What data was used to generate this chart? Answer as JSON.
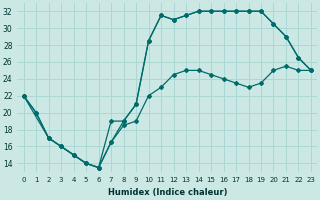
{
  "xlabel": "Humidex (Indice chaleur)",
  "bg_color": "#cce8e5",
  "grid_color": "#aad8d4",
  "line_color": "#006b6b",
  "xlim": [
    -0.5,
    23.5
  ],
  "ylim": [
    13.0,
    33.0
  ],
  "xticks": [
    0,
    1,
    2,
    3,
    4,
    5,
    6,
    7,
    8,
    9,
    10,
    11,
    12,
    13,
    14,
    15,
    16,
    17,
    18,
    19,
    20,
    21,
    22,
    23
  ],
  "yticks": [
    14,
    16,
    18,
    20,
    22,
    24,
    26,
    28,
    30,
    32
  ],
  "line1_x": [
    0,
    1,
    2,
    3,
    4,
    5,
    6,
    7,
    8,
    9,
    10,
    11,
    12,
    13,
    14,
    15,
    16,
    17,
    18,
    19,
    20,
    21,
    22,
    23
  ],
  "line1_y": [
    22,
    20,
    17,
    16,
    15,
    14,
    13.5,
    16.5,
    19,
    21,
    28.5,
    31.5,
    31,
    31.5,
    32,
    32,
    32,
    32,
    32,
    32,
    30.5,
    29,
    26.5,
    25
  ],
  "line2_x": [
    0,
    2,
    3,
    4,
    5,
    6,
    7,
    8,
    9,
    10,
    11,
    12,
    13,
    14,
    15,
    16,
    17,
    18,
    19,
    20,
    21,
    22,
    23
  ],
  "line2_y": [
    22,
    17,
    16,
    15,
    14,
    13.5,
    19,
    19,
    21,
    28.5,
    31.5,
    31,
    31.5,
    32,
    32,
    32,
    32,
    32,
    32,
    30.5,
    29,
    26.5,
    25
  ],
  "line3_x": [
    0,
    1,
    2,
    3,
    4,
    5,
    6,
    7,
    8,
    9,
    10,
    11,
    12,
    13,
    14,
    15,
    16,
    17,
    18,
    19,
    20,
    21,
    22,
    23
  ],
  "line3_y": [
    22,
    20,
    17,
    16,
    15,
    14,
    13.5,
    16.5,
    18.5,
    19,
    22,
    23,
    24.5,
    25,
    25,
    24.5,
    24,
    23.5,
    23,
    23.5,
    25,
    25.5,
    25,
    25
  ]
}
